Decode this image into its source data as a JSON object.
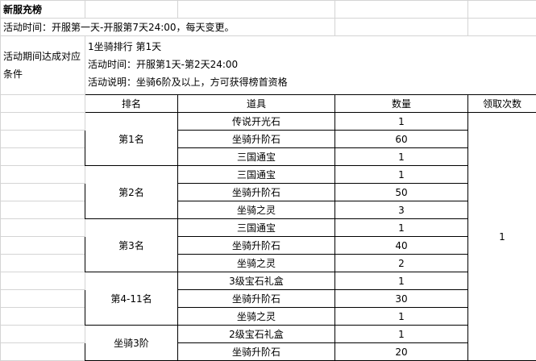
{
  "title": "新服充榜",
  "activity_time": "活动时间：开服第一天-开服第7天24:00，每天变更。",
  "condition_label": "活动期间达成对应条件",
  "section": {
    "heading": "1坐骑排行  第1天",
    "time": "活动时间：开服第1天-第2天24:00",
    "description": "活动说明：坐骑6阶及以上，方可获得榜首资格"
  },
  "headers": [
    "排名",
    "道具",
    "数量",
    "领取次数"
  ],
  "claim_count": "1",
  "groups": [
    {
      "rank": "第1名",
      "items": [
        {
          "name": "传说开光石",
          "qty": "1"
        },
        {
          "name": "坐骑升阶石",
          "qty": "60"
        },
        {
          "name": "三国通宝",
          "qty": "1"
        }
      ]
    },
    {
      "rank": "第2名",
      "items": [
        {
          "name": "三国通宝",
          "qty": "1"
        },
        {
          "name": "坐骑升阶石",
          "qty": "50"
        },
        {
          "name": "坐骑之灵",
          "qty": "3"
        }
      ]
    },
    {
      "rank": "第3名",
      "items": [
        {
          "name": "三国通宝",
          "qty": "1"
        },
        {
          "name": "坐骑升阶石",
          "qty": "40"
        },
        {
          "name": "坐骑之灵",
          "qty": "2"
        }
      ]
    },
    {
      "rank": "第4-11名",
      "items": [
        {
          "name": "3级宝石礼盒",
          "qty": "1"
        },
        {
          "name": "坐骑升阶石",
          "qty": "30"
        },
        {
          "name": "坐骑之灵",
          "qty": "1"
        }
      ]
    },
    {
      "rank": "坐骑3阶",
      "items": [
        {
          "name": "2级宝石礼盒",
          "qty": "1"
        },
        {
          "name": "坐骑升阶石",
          "qty": "20"
        }
      ]
    }
  ]
}
